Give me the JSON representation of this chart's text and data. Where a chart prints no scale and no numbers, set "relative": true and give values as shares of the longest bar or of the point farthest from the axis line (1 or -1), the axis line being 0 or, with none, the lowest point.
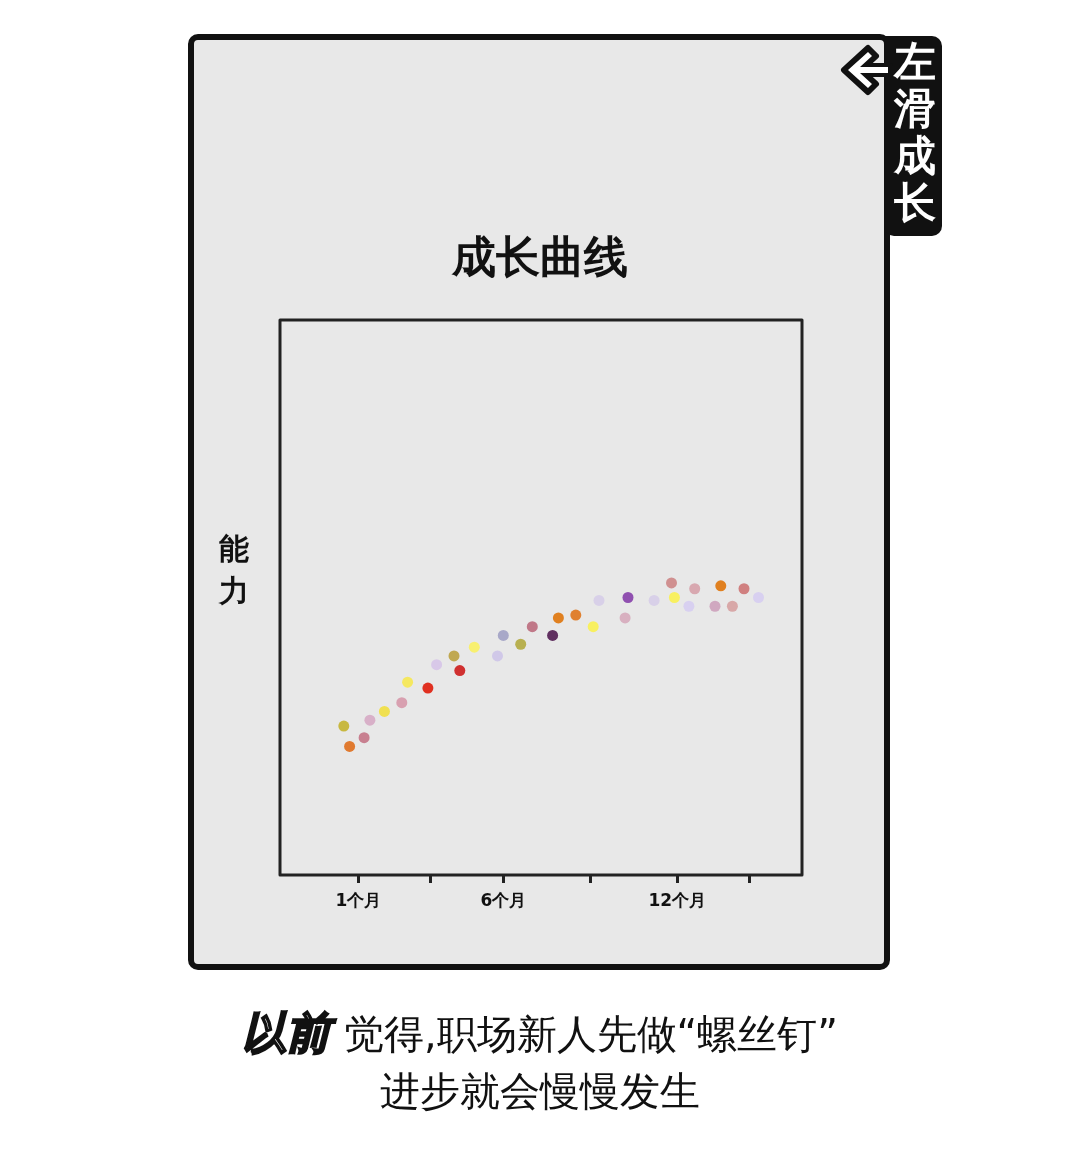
{
  "chart_data": {
    "type": "scatter",
    "title": "成长曲线",
    "ylabel": "能力",
    "relative": true,
    "marker": "circle",
    "grid": false,
    "legend": false,
    "xlim": [
      -1.7,
      16.3
    ],
    "xticks": [
      {
        "value": 1,
        "label": "1个月"
      },
      {
        "value": 3.5,
        "label": null
      },
      {
        "value": 6,
        "label": "6个月"
      },
      {
        "value": 9,
        "label": null
      },
      {
        "value": 12,
        "label": "12个月"
      },
      {
        "value": 14.5,
        "label": null
      }
    ],
    "x": [
      0.5,
      0.7,
      1.2,
      1.4,
      1.9,
      2.5,
      2.7,
      3.4,
      3.7,
      4.3,
      4.5,
      5.0,
      5.8,
      6.0,
      6.6,
      7.0,
      7.7,
      7.9,
      8.5,
      9.1,
      9.3,
      10.2,
      10.3,
      11.2,
      11.8,
      11.9,
      12.4,
      12.6,
      13.3,
      13.5,
      13.9,
      14.3,
      14.8
    ],
    "values": [
      0.51,
      0.44,
      0.47,
      0.53,
      0.56,
      0.59,
      0.66,
      0.64,
      0.72,
      0.75,
      0.7,
      0.78,
      0.75,
      0.82,
      0.79,
      0.85,
      0.82,
      0.88,
      0.89,
      0.85,
      0.94,
      0.88,
      0.95,
      0.94,
      1.0,
      0.95,
      0.92,
      0.98,
      0.92,
      0.99,
      0.92,
      0.98,
      0.95
    ],
    "colors": [
      "#c8b840",
      "#e07a30",
      "#c88090",
      "#d8b0c8",
      "#f0e050",
      "#d8a0b0",
      "#f5e860",
      "#e03020",
      "#d8c8e8",
      "#c0a850",
      "#d03030",
      "#f8f070",
      "#d0c8e8",
      "#a8a8c8",
      "#b8b050",
      "#c07888",
      "#603060",
      "#e08020",
      "#e08030",
      "#f8f060",
      "#d8d0e8",
      "#d8b0c0",
      "#9050b0",
      "#d8d0e8",
      "#d09090",
      "#f8f060",
      "#d8d0f0",
      "#d8a8b0",
      "#d0a8c0",
      "#e08020",
      "#d8a8a8",
      "#d08080",
      "#d8d0f0"
    ],
    "annotations": [
      "左滑成长",
      "以前",
      "觉得,职场新人先做“螺丝钉”",
      "进步就会慢慢发生"
    ]
  }
}
